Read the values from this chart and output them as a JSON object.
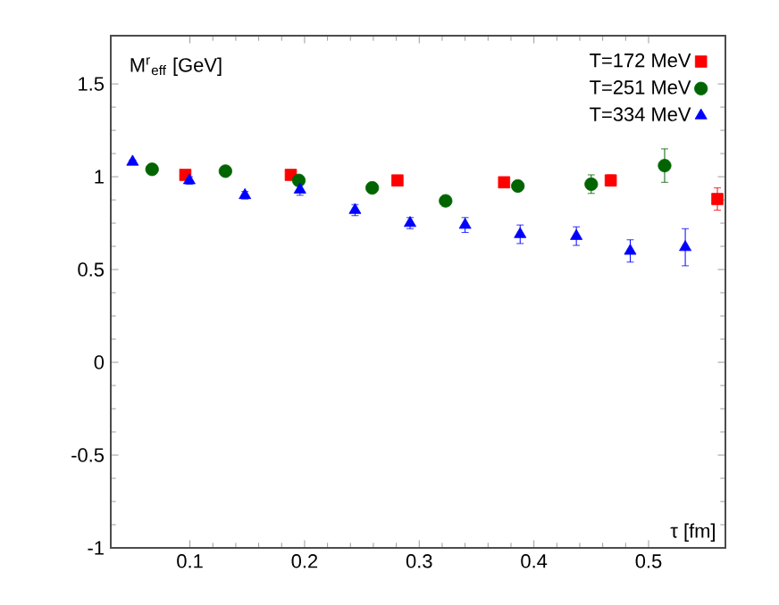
{
  "chart_data": {
    "type": "scatter",
    "ylabel": "M$^{r}$$_{eff}$ [GeV]",
    "xlabel": "τ [fm]",
    "xlim": [
      0.031,
      0.567
    ],
    "ylim": [
      -1,
      1.76
    ],
    "xticks": [
      0.1,
      0.2,
      0.3,
      0.4,
      0.5
    ],
    "yticks": [
      -1,
      -0.5,
      0,
      0.5,
      1,
      1.5
    ],
    "legend": "top right",
    "series": [
      {
        "name": "T=172 MeV",
        "color": "#ff0000",
        "marker": "square",
        "x": [
          0.096,
          0.188,
          0.281,
          0.374,
          0.467,
          0.56
        ],
        "values": [
          1.01,
          1.01,
          0.98,
          0.97,
          0.98,
          0.88
        ],
        "errors": [
          0.02,
          0.02,
          0.02,
          0.02,
          0.03,
          0.06
        ]
      },
      {
        "name": "T=251 MeV",
        "color": "#006400",
        "marker": "circle",
        "x": [
          0.067,
          0.131,
          0.195,
          0.259,
          0.323,
          0.386,
          0.45,
          0.514
        ],
        "values": [
          1.04,
          1.03,
          0.98,
          0.94,
          0.87,
          0.95,
          0.96,
          1.06
        ],
        "errors": [
          0.01,
          0.01,
          0.02,
          0.02,
          0.02,
          0.02,
          0.05,
          0.09
        ]
      },
      {
        "name": "T=334 MeV",
        "color": "#0000ff",
        "marker": "triangle",
        "x": [
          0.05,
          0.0995,
          0.148,
          0.196,
          0.244,
          0.292,
          0.34,
          0.388,
          0.437,
          0.484,
          0.532
        ],
        "values": [
          1.08,
          0.98,
          0.9,
          0.93,
          0.82,
          0.75,
          0.74,
          0.69,
          0.68,
          0.6,
          0.62
        ],
        "errors": [
          0.01,
          0.02,
          0.02,
          0.03,
          0.03,
          0.03,
          0.04,
          0.05,
          0.05,
          0.06,
          0.1
        ]
      }
    ]
  }
}
